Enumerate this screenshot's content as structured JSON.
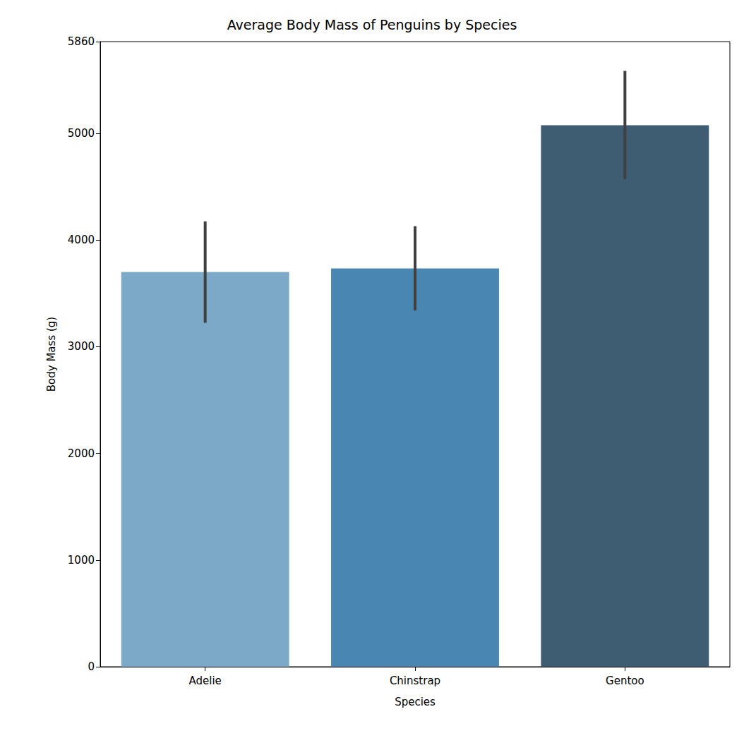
{
  "chart_data": {
    "type": "bar",
    "title": "Average Body Mass of Penguins by Species",
    "x_label": "Species",
    "y_label": "Body Mass (g)",
    "categories": [
      "Adelie",
      "Chinstrap",
      "Gentoo"
    ],
    "values": [
      3700,
      3733,
      5076
    ],
    "colors": [
      "#7da9c8",
      "#4a86b2",
      "#3e5c72"
    ],
    "error_low": [
      3225,
      3340,
      4570
    ],
    "error_high": [
      4175,
      4130,
      5585
    ],
    "ylim": [
      0,
      5860
    ],
    "yticks": [
      0,
      1000,
      2000,
      3000,
      4000,
      5000
    ],
    "grid": false
  }
}
